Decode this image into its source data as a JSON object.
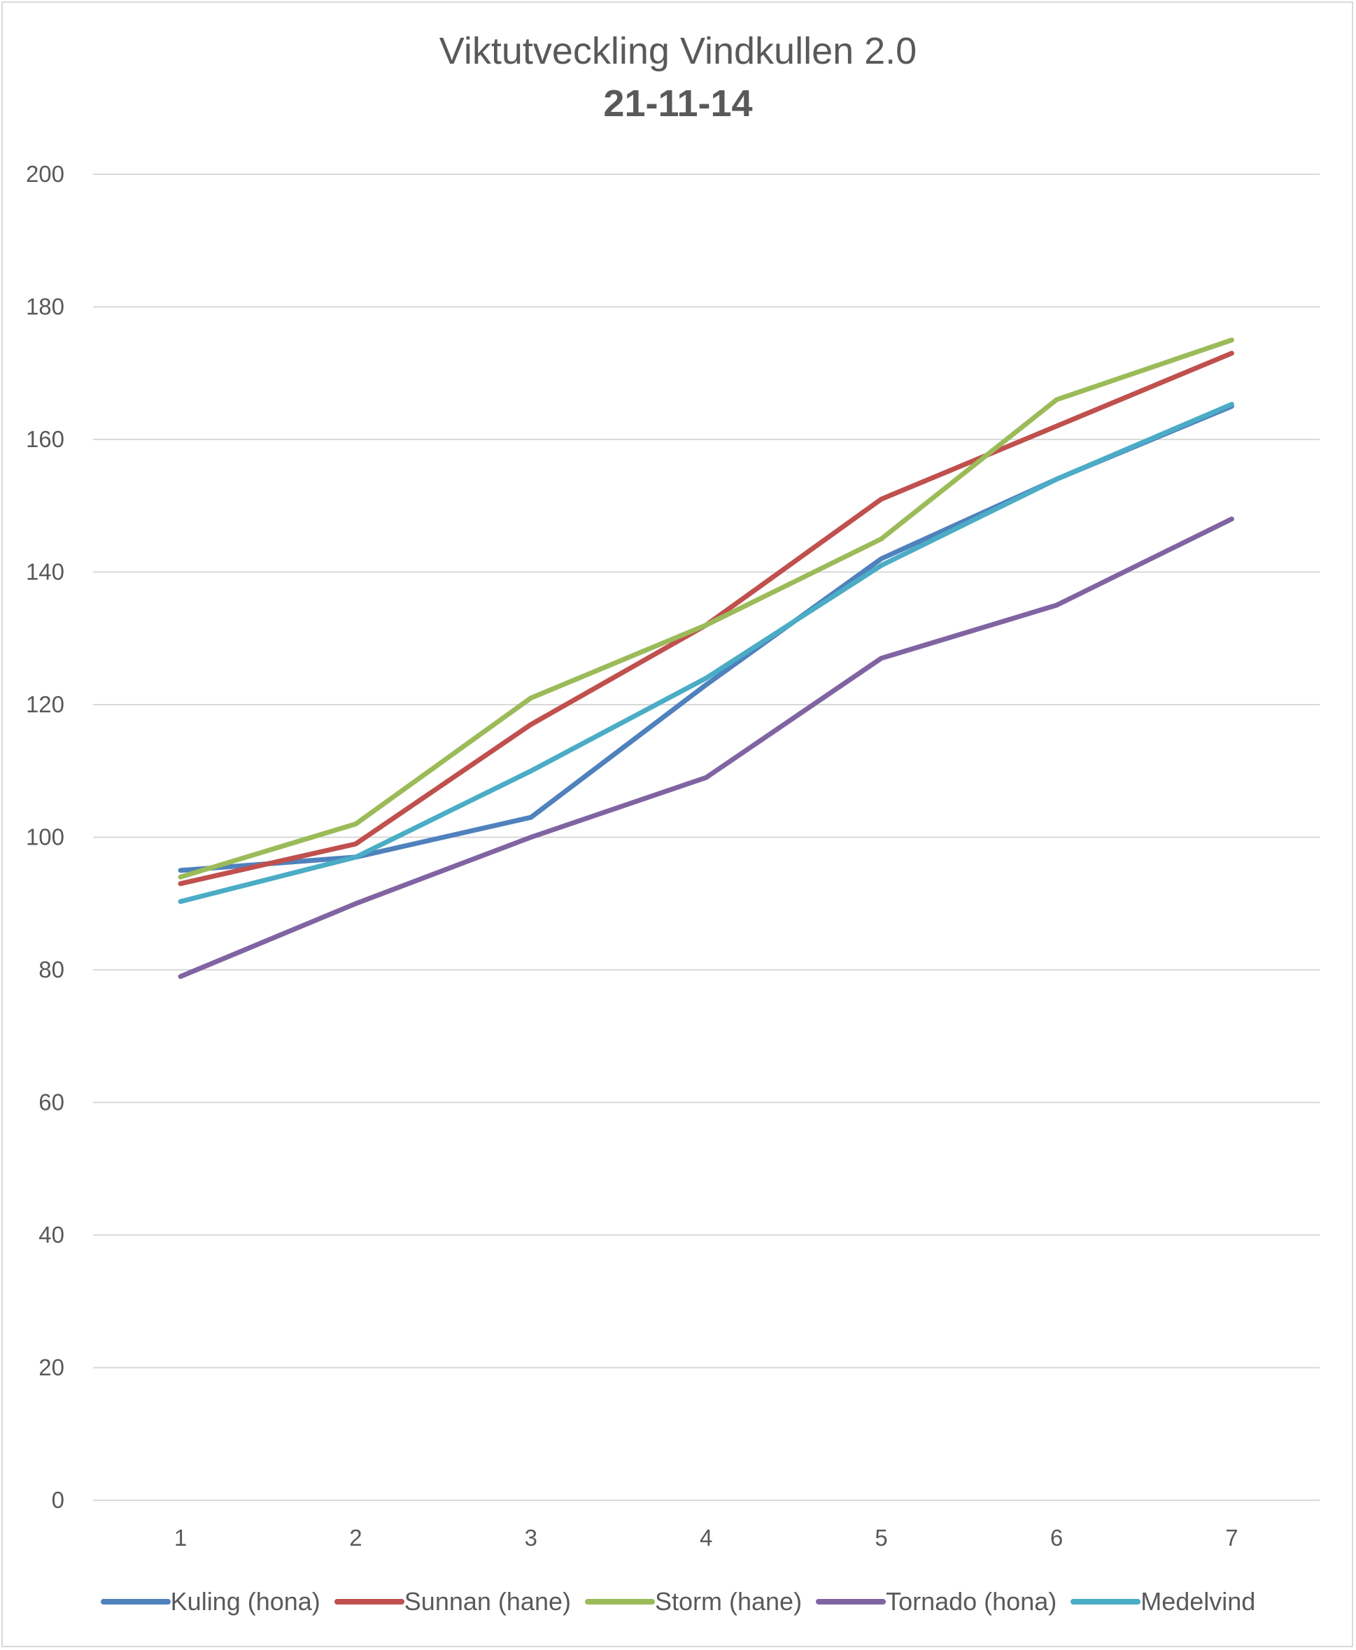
{
  "chart_data": {
    "type": "line",
    "title": "Viktutveckling Vindkullen 2.0",
    "subtitle": "21-11-14",
    "xlabel": "",
    "ylabel": "",
    "x": [
      "1",
      "2",
      "3",
      "4",
      "5",
      "6",
      "7"
    ],
    "ylim": [
      0,
      200
    ],
    "yticks": [
      "0",
      "20",
      "40",
      "60",
      "80",
      "100",
      "120",
      "140",
      "160",
      "180",
      "200"
    ],
    "grid": "horizontal",
    "legend": "bottom",
    "series": [
      {
        "name": "Kuling (hona)",
        "color": "#4f81bd",
        "values": [
          95,
          97,
          103,
          123,
          142,
          154,
          165
        ]
      },
      {
        "name": "Sunnan (hane)",
        "color": "#c0504d",
        "values": [
          93,
          99,
          117,
          132,
          151,
          162,
          173
        ]
      },
      {
        "name": "Storm (hane)",
        "color": "#9bbb59",
        "values": [
          94,
          102,
          121,
          132,
          145,
          166,
          175
        ]
      },
      {
        "name": "Tornado (hona)",
        "color": "#8064a2",
        "values": [
          79,
          90,
          100,
          109,
          127,
          135,
          148
        ]
      },
      {
        "name": "Medelvind",
        "color": "#4bacc6",
        "values": [
          90.3,
          97,
          110,
          124,
          141,
          154,
          165.3
        ]
      }
    ]
  }
}
